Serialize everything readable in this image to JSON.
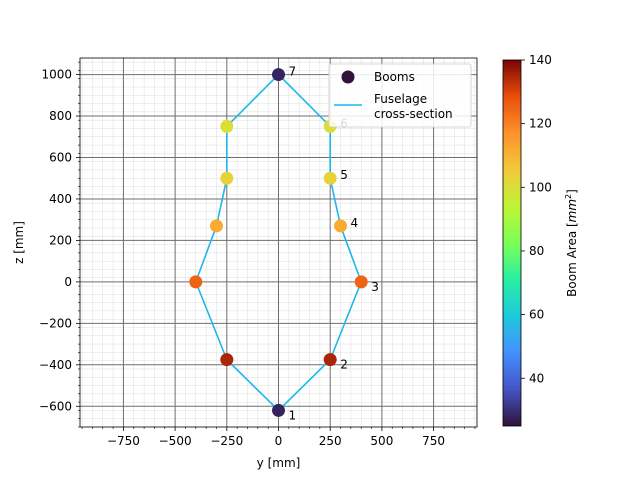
{
  "chart_data": {
    "type": "scatter",
    "xlabel": "y [mm]",
    "ylabel": "z [mm]",
    "xlim": [
      -960,
      960
    ],
    "ylim": [
      -700,
      1080
    ],
    "xticks": [
      -750,
      -500,
      -250,
      0,
      250,
      500,
      750
    ],
    "yticks": [
      -600,
      -400,
      -200,
      0,
      200,
      400,
      600,
      800,
      1000
    ],
    "xtick_labels": [
      "−750",
      "−500",
      "−250",
      "0",
      "250",
      "500",
      "750"
    ],
    "ytick_labels": [
      "−600",
      "−400",
      "−200",
      "0",
      "200",
      "400",
      "600",
      "800",
      "1000"
    ],
    "grid": true,
    "legend_position": "top-right",
    "legend": [
      {
        "label": "Booms",
        "kind": "marker"
      },
      {
        "label": "Fuselage\ncross-section",
        "kind": "line",
        "color": "#1ab8ec"
      }
    ],
    "booms": [
      {
        "label": "1",
        "y": 0,
        "z": -620,
        "area": 28
      },
      {
        "label": "2",
        "y": 250,
        "z": -375,
        "area": 135
      },
      {
        "label": "3",
        "y": 400,
        "z": 0,
        "area": 125
      },
      {
        "label": "4",
        "y": 300,
        "z": 270,
        "area": 112
      },
      {
        "label": "5",
        "y": 250,
        "z": 500,
        "area": 103
      },
      {
        "label": "6",
        "y": 250,
        "z": 750,
        "area": 100
      },
      {
        "label": "7",
        "y": 0,
        "z": 1000,
        "area": 28
      },
      {
        "label": "",
        "y": -250,
        "z": 750,
        "area": 100
      },
      {
        "label": "",
        "y": -250,
        "z": 500,
        "area": 103
      },
      {
        "label": "",
        "y": -300,
        "z": 270,
        "area": 112
      },
      {
        "label": "",
        "y": -400,
        "z": 0,
        "area": 125
      },
      {
        "label": "",
        "y": -250,
        "z": -375,
        "area": 135
      }
    ],
    "fuselage": {
      "name": "Fuselage cross-section",
      "color": "#1ab8ec",
      "y": [
        0,
        250,
        400,
        300,
        250,
        250,
        0,
        -250,
        -250,
        -300,
        -400,
        -250,
        0
      ],
      "z": [
        -620,
        -375,
        0,
        270,
        500,
        750,
        1000,
        750,
        500,
        270,
        0,
        -375,
        -620
      ]
    },
    "colorbar": {
      "label": "Boom Area [",
      "label_unit": "mm",
      "label_sup": "2",
      "label_end": "]",
      "min": 25,
      "max": 140,
      "ticks": [
        40,
        60,
        80,
        100,
        120,
        140
      ],
      "colormap": "turbo"
    }
  }
}
